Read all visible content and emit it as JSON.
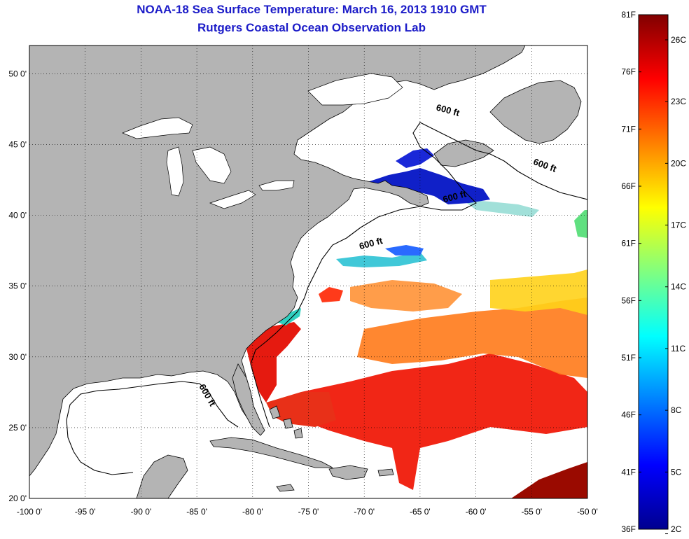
{
  "title": "NOAA-18 Sea Surface Temperature:  March 16, 2013 1910 GMT",
  "subtitle": "Rutgers Coastal Ocean Observation Lab",
  "map": {
    "lon_range": [
      -100,
      -50
    ],
    "lat_range": [
      20,
      52
    ],
    "lon_ticks": [
      "-100 0'",
      "-95 0'",
      "-90 0'",
      "-85 0'",
      "-80 0'",
      "-75 0'",
      "-70 0'",
      "-65 0'",
      "-60 0'",
      "-55 0'",
      "-50 0'"
    ],
    "lat_ticks": [
      "20 0'",
      "25 0'",
      "30 0'",
      "35 0'",
      "40 0'",
      "45 0'",
      "50 0'"
    ],
    "lon_tick_values": [
      -100,
      -95,
      -90,
      -85,
      -80,
      -75,
      -70,
      -65,
      -60,
      -55,
      -50
    ],
    "lat_tick_values": [
      20,
      25,
      30,
      35,
      40,
      45,
      50
    ],
    "land_color": "#b4b4b4",
    "grid": true,
    "contour_labels": [
      "600 ft",
      "600 ft",
      "600 ft",
      "600 ft",
      "600 ft"
    ]
  },
  "colorbar": {
    "colormap": "jet",
    "f_labels": [
      "81F",
      "76F",
      "71F",
      "66F",
      "61F",
      "56F",
      "51F",
      "46F",
      "41F",
      "36F"
    ],
    "f_values": [
      81,
      76,
      71,
      66,
      61,
      56,
      51,
      46,
      41,
      36
    ],
    "c_labels": [
      "26C",
      "23C",
      "20C",
      "17C",
      "14C",
      "11C",
      "8C",
      "5C",
      "2C"
    ],
    "c_values": [
      26,
      23,
      20,
      17,
      14,
      11,
      8,
      5,
      2
    ],
    "range_f": [
      36,
      81
    ]
  }
}
